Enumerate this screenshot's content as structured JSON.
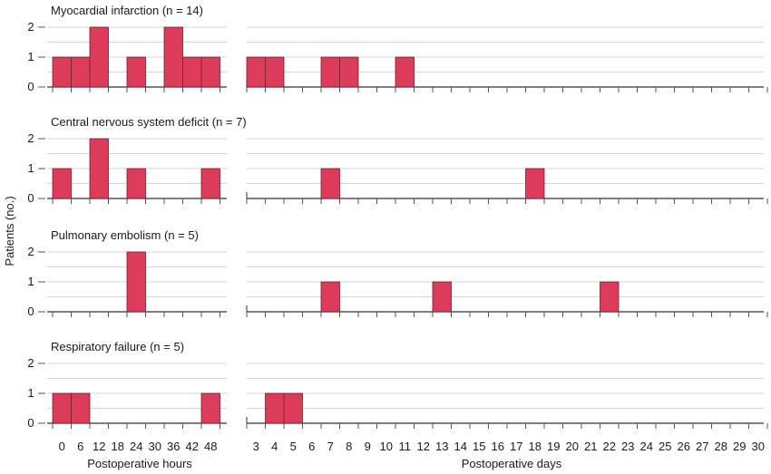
{
  "chart_data": {
    "type": "bar",
    "bar_color": "#dc3c5a",
    "grid_color": "#c8c8c8",
    "ylabel": "Patients (no.)",
    "y_ticks": [
      "0",
      "1",
      "2"
    ],
    "ylim": [
      0,
      2
    ],
    "grid": true,
    "hours": {
      "xlabel": "Postoperative hours",
      "categories": [
        "0",
        "6",
        "12",
        "18",
        "24",
        "30",
        "36",
        "42",
        "48"
      ]
    },
    "days": {
      "xlabel": "Postoperative days",
      "categories": [
        "3",
        "4",
        "5",
        "6",
        "7",
        "8",
        "9",
        "10",
        "11",
        "12",
        "13",
        "14",
        "15",
        "16",
        "17",
        "18",
        "19",
        "20",
        "21",
        "22",
        "23",
        "24",
        "25",
        "26",
        "27",
        "28",
        "29",
        "30"
      ]
    },
    "panels": [
      {
        "title": "Myocardial infarction (n = 14)",
        "hours_values": [
          1,
          1,
          2,
          0,
          1,
          0,
          2,
          1,
          1
        ],
        "days_values": [
          1,
          1,
          0,
          0,
          1,
          1,
          0,
          0,
          1,
          0,
          0,
          0,
          0,
          0,
          0,
          0,
          0,
          0,
          0,
          0,
          0,
          0,
          0,
          0,
          0,
          0,
          0,
          0
        ]
      },
      {
        "title": "Central nervous system deficit (n = 7)",
        "hours_values": [
          1,
          0,
          2,
          0,
          1,
          0,
          0,
          0,
          1
        ],
        "days_values": [
          0,
          0,
          0,
          0,
          1,
          0,
          0,
          0,
          0,
          0,
          0,
          0,
          0,
          0,
          0,
          1,
          0,
          0,
          0,
          0,
          0,
          0,
          0,
          0,
          0,
          0,
          0,
          0
        ]
      },
      {
        "title": "Pulmonary embolism (n = 5)",
        "hours_values": [
          0,
          0,
          0,
          0,
          2,
          0,
          0,
          0,
          0
        ],
        "days_values": [
          0,
          0,
          0,
          0,
          1,
          0,
          0,
          0,
          0,
          0,
          1,
          0,
          0,
          0,
          0,
          0,
          0,
          0,
          0,
          1,
          0,
          0,
          0,
          0,
          0,
          0,
          0,
          0
        ]
      },
      {
        "title": "Respiratory failure (n = 5)",
        "hours_values": [
          1,
          1,
          0,
          0,
          0,
          0,
          0,
          0,
          1
        ],
        "days_values": [
          0,
          1,
          1,
          0,
          0,
          0,
          0,
          0,
          0,
          0,
          0,
          0,
          0,
          0,
          0,
          0,
          0,
          0,
          0,
          0,
          0,
          0,
          0,
          0,
          0,
          0,
          0,
          0
        ]
      }
    ]
  }
}
